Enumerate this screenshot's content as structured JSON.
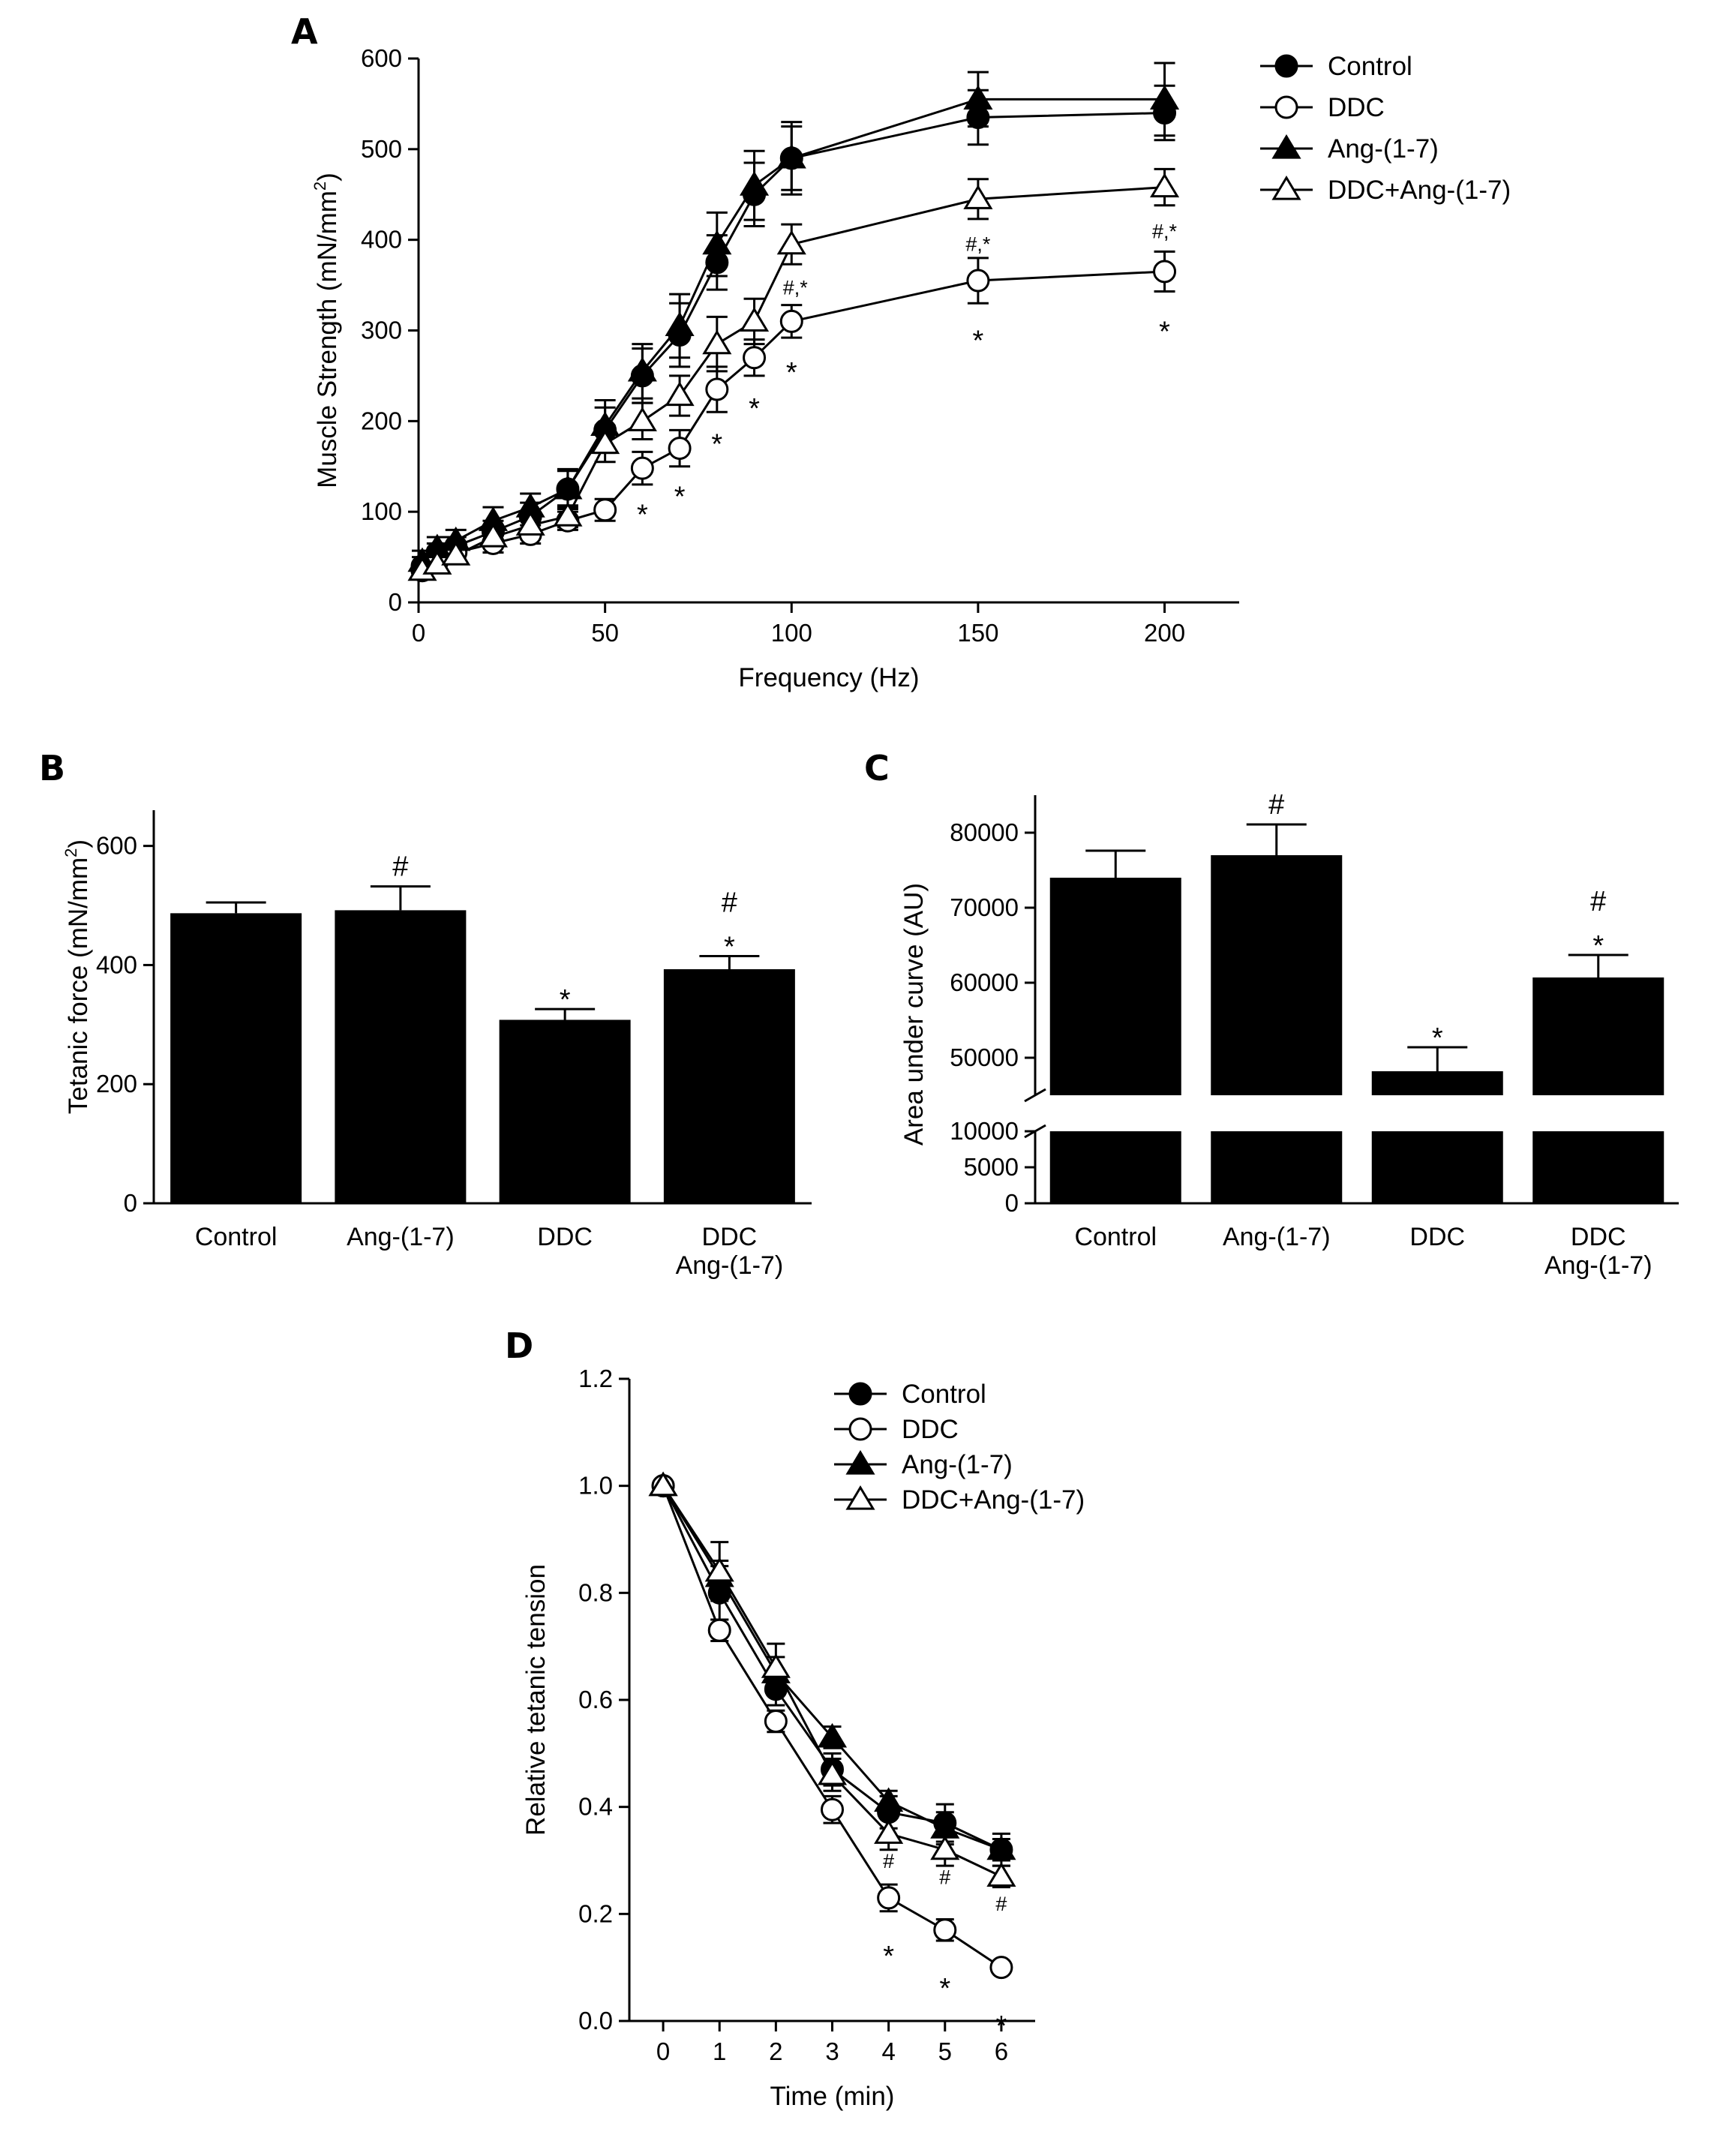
{
  "chart_data": [
    {
      "panel": "A",
      "type": "line",
      "xlabel": "Frequency (Hz)",
      "ylabel_main": "Muscle Strength (mN/mm",
      "ylabel_sup": "2",
      "ylabel_end": ")",
      "xlim": [
        0,
        220
      ],
      "ylim": [
        0,
        600
      ],
      "xticks": [
        0,
        50,
        100,
        150,
        200
      ],
      "yticks": [
        0,
        100,
        200,
        300,
        400,
        500,
        600
      ],
      "x": [
        1,
        5,
        10,
        20,
        30,
        40,
        50,
        60,
        70,
        80,
        90,
        100,
        150,
        200
      ],
      "series": [
        {
          "name": "Control",
          "marker": "circle",
          "filled": true,
          "values": [
            40,
            55,
            62,
            78,
            95,
            125,
            190,
            250,
            295,
            375,
            450,
            490,
            535,
            540
          ],
          "errors": [
            10,
            10,
            10,
            12,
            15,
            20,
            25,
            30,
            35,
            30,
            35,
            35,
            30,
            30
          ]
        },
        {
          "name": "DDC",
          "marker": "circle",
          "filled": false,
          "values": [
            35,
            45,
            55,
            65,
            75,
            90,
            102,
            148,
            170,
            235,
            270,
            310,
            355,
            365
          ],
          "errors": [
            8,
            8,
            8,
            10,
            10,
            10,
            12,
            18,
            20,
            25,
            20,
            18,
            25,
            22
          ]
        },
        {
          "name": "Ang-(1-7)",
          "marker": "triangle",
          "filled": true,
          "values": [
            45,
            60,
            68,
            90,
            105,
            125,
            195,
            255,
            305,
            395,
            460,
            490,
            555,
            555
          ],
          "errors": [
            12,
            12,
            12,
            15,
            15,
            22,
            28,
            30,
            35,
            35,
            38,
            40,
            30,
            40
          ]
        },
        {
          "name": "DDC+Ang-(1-7)",
          "marker": "triangle",
          "filled": false,
          "values": [
            35,
            42,
            52,
            72,
            85,
            95,
            175,
            200,
            228,
            285,
            310,
            395,
            445,
            458
          ],
          "errors": [
            8,
            8,
            8,
            10,
            12,
            12,
            20,
            20,
            22,
            30,
            25,
            22,
            22,
            20
          ]
        }
      ],
      "annotations": [
        {
          "x": 60,
          "y": 108,
          "text": "*",
          "size": "lg"
        },
        {
          "x": 70,
          "y": 128,
          "text": "*",
          "size": "lg"
        },
        {
          "x": 80,
          "y": 186,
          "text": "*",
          "size": "lg"
        },
        {
          "x": 90,
          "y": 225,
          "text": "*",
          "size": "lg"
        },
        {
          "x": 100,
          "y": 265,
          "text": "*",
          "size": "lg"
        },
        {
          "x": 150,
          "y": 300,
          "text": "*",
          "size": "lg"
        },
        {
          "x": 200,
          "y": 310,
          "text": "*",
          "size": "lg"
        },
        {
          "x": 101,
          "y": 348,
          "text": "#,*",
          "size": "sm"
        },
        {
          "x": 150,
          "y": 396,
          "text": "#,*",
          "size": "sm"
        },
        {
          "x": 200,
          "y": 410,
          "text": "#,*",
          "size": "sm"
        }
      ]
    },
    {
      "panel": "B",
      "type": "bar",
      "ylabel_main": "Tetanic force (mN/mm",
      "ylabel_sup": "2",
      "ylabel_end": ")",
      "ylim": [
        0,
        660
      ],
      "yticks": [
        0,
        200,
        400,
        600
      ],
      "categories": [
        [
          "Control"
        ],
        [
          "Ang-(1-7)"
        ],
        [
          "DDC"
        ],
        [
          "DDC",
          "Ang-(1-7)"
        ]
      ],
      "values": [
        487,
        492,
        308,
        393
      ],
      "errors": [
        18,
        40,
        18,
        22
      ],
      "annotations": [
        [
          "#"
        ],
        [
          "*"
        ],
        [
          "#",
          "*"
        ]
      ],
      "annotation_bars": [
        1,
        2,
        3
      ]
    },
    {
      "panel": "C",
      "type": "bar",
      "ylabel": "Area under curve (AU)",
      "axis_break": [
        10000,
        45000
      ],
      "ylim_lower": [
        0,
        10000
      ],
      "ylim_upper": [
        45000,
        85000
      ],
      "yticks_lower": [
        0,
        5000,
        10000
      ],
      "yticks_upper": [
        50000,
        60000,
        70000,
        80000
      ],
      "categories": [
        [
          "Control"
        ],
        [
          "Ang-(1-7)"
        ],
        [
          "DDC"
        ],
        [
          "DDC",
          "Ang-(1-7)"
        ]
      ],
      "values": [
        74000,
        77000,
        48200,
        60700
      ],
      "errors": [
        3600,
        4100,
        3200,
        3000
      ],
      "annotations": [
        [
          "#"
        ],
        [
          "*"
        ],
        [
          "#",
          "*"
        ]
      ],
      "annotation_bars": [
        1,
        2,
        3
      ]
    },
    {
      "panel": "D",
      "type": "line",
      "xlabel": "Time (min)",
      "ylabel": "Relative tetanic tension",
      "xlim": [
        -0.6,
        6.6
      ],
      "ylim": [
        0,
        1.2
      ],
      "xticks": [
        0,
        1,
        2,
        3,
        4,
        5,
        6
      ],
      "yticks": [
        "0.0",
        "0.2",
        "0.4",
        "0.6",
        "0.8",
        "1.0",
        "1.2"
      ],
      "x": [
        0,
        1,
        2,
        3,
        4,
        5,
        6
      ],
      "series": [
        {
          "name": "Control",
          "marker": "circle",
          "filled": true,
          "values": [
            1.0,
            0.8,
            0.62,
            0.47,
            0.39,
            0.37,
            0.32
          ],
          "errors": [
            0,
            0.05,
            0.03,
            0.03,
            0.03,
            0.035,
            0.03
          ]
        },
        {
          "name": "DDC",
          "marker": "circle",
          "filled": false,
          "values": [
            1.0,
            0.73,
            0.56,
            0.395,
            0.23,
            0.17,
            0.1
          ],
          "errors": [
            0,
            0.02,
            0.02,
            0.025,
            0.025,
            0.02,
            0.01
          ]
        },
        {
          "name": "Ang-(1-7)",
          "marker": "triangle",
          "filled": true,
          "values": [
            1.0,
            0.83,
            0.65,
            0.53,
            0.41,
            0.36,
            0.32
          ],
          "errors": [
            0,
            0.03,
            0.03,
            0.02,
            0.02,
            0.03,
            0.02
          ]
        },
        {
          "name": "DDC+Ang-(1-7)",
          "marker": "triangle",
          "filled": false,
          "values": [
            1.0,
            0.84,
            0.66,
            0.46,
            0.35,
            0.32,
            0.27
          ],
          "errors": [
            0,
            0.055,
            0.045,
            0.03,
            0.03,
            0.03,
            0.02
          ]
        }
      ],
      "annotations": [
        {
          "x": 4,
          "y": 0.3,
          "text": "#",
          "size": "sm"
        },
        {
          "x": 5,
          "y": 0.27,
          "text": "#",
          "size": "sm"
        },
        {
          "x": 6,
          "y": 0.22,
          "text": "#",
          "size": "sm"
        },
        {
          "x": 4,
          "y": 0.14,
          "text": "*",
          "size": "lg"
        },
        {
          "x": 5,
          "y": 0.08,
          "text": "*",
          "size": "lg"
        },
        {
          "x": 6,
          "y": 0.01,
          "text": "*",
          "size": "lg"
        }
      ]
    }
  ]
}
